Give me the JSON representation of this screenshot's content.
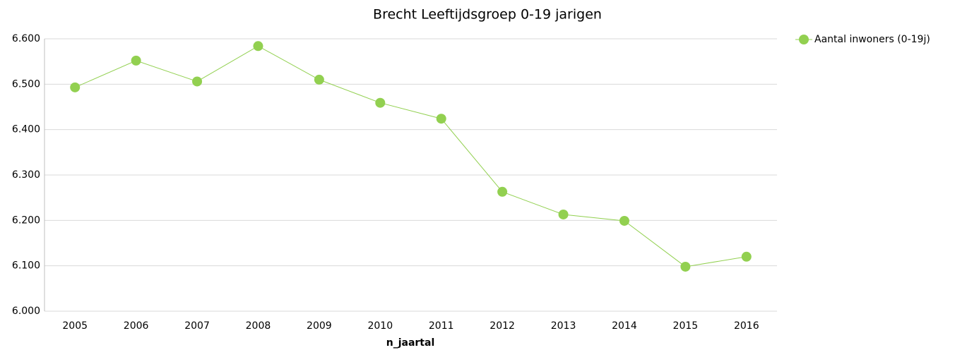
{
  "chart_data": {
    "type": "line",
    "title": "Brecht  Leeftijdsgroep 0-19 jarigen",
    "x_label": "n_jaartal",
    "categories": [
      "2005",
      "2006",
      "2007",
      "2008",
      "2009",
      "2010",
      "2011",
      "2012",
      "2013",
      "2014",
      "2015",
      "2016"
    ],
    "series": [
      {
        "name": "Aantal inwoners (0-19j)",
        "color": "#92d050",
        "values": [
          6493,
          6552,
          6506,
          6584,
          6510,
          6459,
          6424,
          6263,
          6213,
          6199,
          6098,
          6120
        ]
      }
    ],
    "ylim": [
      6000,
      6600
    ],
    "yticks": [
      {
        "value": 6000,
        "label": "6.000"
      },
      {
        "value": 6100,
        "label": "6.100"
      },
      {
        "value": 6200,
        "label": "6.200"
      },
      {
        "value": 6300,
        "label": "6.300"
      },
      {
        "value": 6400,
        "label": "6.400"
      },
      {
        "value": 6500,
        "label": "6.500"
      },
      {
        "value": 6600,
        "label": "6.600"
      }
    ],
    "grid": true,
    "legend": "right"
  }
}
